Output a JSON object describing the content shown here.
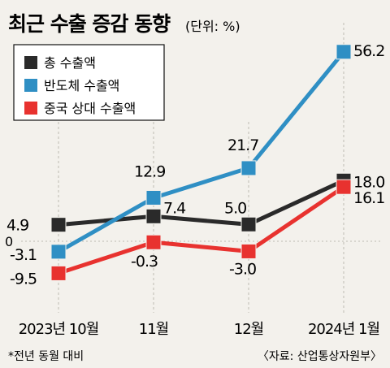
{
  "header": {
    "title": "최근 수출 증감 동향",
    "unit": "(단위: %)"
  },
  "footer": {
    "note": "*전년 동월 대비",
    "source": "〈자료: 산업통상자원부〉"
  },
  "colors": {
    "background": "#f3f1ec",
    "total": "#2a2a2a",
    "semiconductor": "#2f8fc4",
    "china": "#e8322f",
    "grid": "#bdbab2"
  },
  "chart_data": {
    "type": "line",
    "title": "최근 수출 증감 동향",
    "unit": "(단위: %)",
    "categories": [
      "2023년 10월",
      "11월",
      "12월",
      "2024년 1월"
    ],
    "series": [
      {
        "name": "총 수출액",
        "color": "#2a2a2a",
        "values": [
          4.9,
          7.4,
          5.0,
          18.0
        ],
        "labels": [
          "4.9",
          "7.4",
          "5.0",
          "18.0"
        ]
      },
      {
        "name": "반도체 수출액",
        "color": "#2f8fc4",
        "values": [
          -3.1,
          12.9,
          21.7,
          56.2
        ],
        "labels": [
          "-3.1",
          "12.9",
          "21.7",
          "56.2"
        ]
      },
      {
        "name": "중국 상대 수출액",
        "color": "#e8322f",
        "values": [
          -9.5,
          -0.3,
          -3.0,
          16.1
        ],
        "labels": [
          "-9.5",
          "-0.3",
          "-3.0",
          "16.1"
        ]
      }
    ],
    "y_zero_label": "0",
    "legend_position": "top-left",
    "grid": "dashed vertical lines at each month",
    "note": "*전년 동월 대비"
  }
}
